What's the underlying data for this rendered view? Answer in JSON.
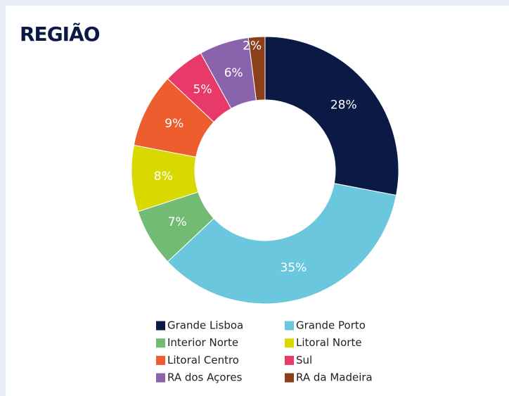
{
  "chart_data": {
    "type": "donut",
    "title": "REGIÃO",
    "categories": [
      "Grande Lisboa",
      "Grande Porto",
      "Interior Norte",
      "Litoral Norte",
      "Litoral Centro",
      "Sul",
      "RA dos Açores",
      "RA da Madeira"
    ],
    "values": [
      28,
      35,
      7,
      8,
      9,
      5,
      6,
      2
    ],
    "value_labels": [
      "28%",
      "35%",
      "7%",
      "8%",
      "9%",
      "5%",
      "6%",
      "2%"
    ],
    "colors": [
      "#0b1a45",
      "#6ac7dd",
      "#72bb74",
      "#d9d800",
      "#ee5d2e",
      "#e8396b",
      "#8a63ad",
      "#8b3f1a"
    ],
    "legend": "bottom"
  }
}
